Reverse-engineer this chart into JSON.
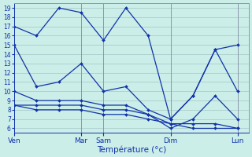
{
  "background_color": "#cceee8",
  "grid_color": "#aacccc",
  "line_color": "#1133aa",
  "ylabel": "Température (°c)",
  "ylim": [
    5.5,
    19.5
  ],
  "yticks": [
    6,
    7,
    8,
    9,
    10,
    11,
    12,
    13,
    14,
    15,
    16,
    17,
    18,
    19
  ],
  "xtick_labels": [
    "Ven",
    "Mar",
    "Sam",
    "Dim",
    "Lun"
  ],
  "xtick_positions": [
    0,
    3,
    4,
    7,
    10
  ],
  "vlines": [
    3,
    4,
    7,
    10
  ],
  "xlim": [
    0,
    10.5
  ],
  "series": [
    {
      "x": [
        0,
        1,
        2,
        3,
        4,
        5,
        6,
        7,
        8,
        9,
        10
      ],
      "y": [
        17,
        16,
        19,
        18.5,
        15.5,
        19,
        16,
        7,
        9.5,
        14.5,
        15.0
      ]
    },
    {
      "x": [
        0,
        1,
        2,
        3,
        4,
        5,
        6,
        7,
        8,
        9,
        10
      ],
      "y": [
        15,
        10.5,
        11,
        13,
        10,
        10.5,
        8,
        7,
        9.5,
        14.5,
        10.0
      ]
    },
    {
      "x": [
        0,
        1,
        2,
        3,
        4,
        5,
        6,
        7,
        8,
        9,
        10
      ],
      "y": [
        10,
        9,
        9,
        9,
        8.5,
        8.5,
        7.5,
        6,
        7,
        9.5,
        7.0
      ]
    },
    {
      "x": [
        0,
        1,
        2,
        3,
        4,
        5,
        6,
        7,
        8,
        9,
        10
      ],
      "y": [
        8.5,
        8.5,
        8.5,
        8.5,
        8.0,
        8.0,
        7.5,
        6.5,
        6.5,
        6.5,
        6.0
      ]
    },
    {
      "x": [
        0,
        1,
        2,
        3,
        4,
        5,
        6,
        7,
        8,
        9,
        10
      ],
      "y": [
        8.5,
        8.0,
        8.0,
        8.0,
        7.5,
        7.5,
        7.0,
        6.5,
        6.0,
        6.0,
        6.0
      ]
    }
  ]
}
